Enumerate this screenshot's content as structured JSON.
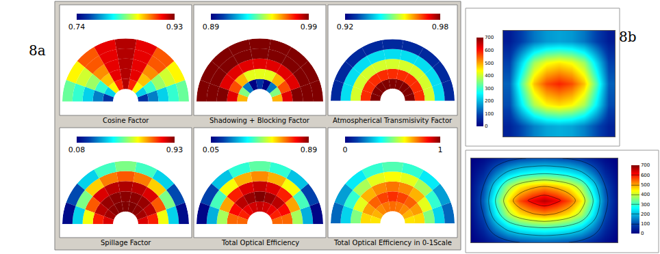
{
  "figure_labels": [
    "8a",
    "8b"
  ],
  "chart_data": [
    {
      "type": "polar_heatmap",
      "title": "Cosine Factor",
      "rlim": [
        0,
        1
      ],
      "r_edges": [
        0.2,
        0.36,
        0.52,
        0.68,
        0.84,
        1.0
      ],
      "theta_edges": [
        0,
        20,
        40,
        60,
        80,
        100,
        120,
        140,
        160,
        180
      ],
      "cells": [
        [
          0.76,
          0.8,
          0.86,
          0.9,
          0.92,
          0.9,
          0.86,
          0.8,
          0.76
        ],
        [
          0.78,
          0.82,
          0.87,
          0.91,
          0.92,
          0.91,
          0.87,
          0.82,
          0.78
        ],
        [
          0.8,
          0.84,
          0.88,
          0.91,
          0.92,
          0.91,
          0.88,
          0.84,
          0.8
        ],
        [
          0.82,
          0.85,
          0.89,
          0.91,
          0.92,
          0.91,
          0.89,
          0.85,
          0.82
        ],
        [
          0.83,
          0.86,
          0.89,
          0.91,
          0.92,
          0.91,
          0.89,
          0.86,
          0.83
        ]
      ],
      "colorbar": {
        "range": [
          0.74,
          0.93
        ],
        "ticks": [
          0.74,
          0.93
        ]
      }
    },
    {
      "type": "polar_heatmap",
      "title": "Shadowing + Blocking Factor",
      "rlim": [
        0,
        1
      ],
      "r_edges": [
        0.2,
        0.36,
        0.52,
        0.68,
        0.84,
        1.0
      ],
      "theta_edges": [
        0,
        20,
        40,
        60,
        80,
        100,
        120,
        140,
        160,
        180
      ],
      "cells": [
        [
          0.96,
          0.94,
          0.91,
          0.89,
          0.9,
          0.89,
          0.91,
          0.94,
          0.96
        ],
        [
          0.98,
          0.97,
          0.96,
          0.95,
          0.95,
          0.95,
          0.96,
          0.97,
          0.98
        ],
        [
          0.99,
          0.98,
          0.98,
          0.98,
          0.98,
          0.98,
          0.98,
          0.98,
          0.99
        ],
        [
          0.99,
          0.99,
          0.99,
          0.99,
          0.99,
          0.99,
          0.99,
          0.99,
          0.99
        ],
        [
          0.99,
          0.99,
          0.99,
          0.99,
          0.99,
          0.99,
          0.99,
          0.99,
          0.99
        ]
      ],
      "colorbar": {
        "range": [
          0.89,
          0.99
        ],
        "ticks": [
          0.89,
          0.99
        ]
      }
    },
    {
      "type": "polar_heatmap",
      "title": "Atmospherical Transmisivity Factor",
      "rlim": [
        0,
        1
      ],
      "r_edges": [
        0.2,
        0.36,
        0.52,
        0.68,
        0.84,
        1.0
      ],
      "theta_edges": [
        0,
        20,
        40,
        60,
        80,
        100,
        120,
        140,
        160,
        180
      ],
      "cells": [
        [
          0.98,
          0.98,
          0.98,
          0.98,
          0.98,
          0.98,
          0.98,
          0.98,
          0.98
        ],
        [
          0.97,
          0.97,
          0.97,
          0.97,
          0.97,
          0.97,
          0.97,
          0.97,
          0.97
        ],
        [
          0.955,
          0.955,
          0.955,
          0.955,
          0.955,
          0.955,
          0.955,
          0.955,
          0.955
        ],
        [
          0.94,
          0.94,
          0.94,
          0.94,
          0.94,
          0.94,
          0.94,
          0.94,
          0.94
        ],
        [
          0.925,
          0.925,
          0.925,
          0.925,
          0.925,
          0.925,
          0.925,
          0.925,
          0.925
        ]
      ],
      "colorbar": {
        "range": [
          0.92,
          0.98
        ],
        "ticks": [
          0.92,
          0.98
        ]
      }
    },
    {
      "type": "polar_heatmap",
      "title": "Spillage Factor",
      "rlim": [
        0,
        1
      ],
      "r_edges": [
        0.2,
        0.36,
        0.52,
        0.68,
        0.84,
        1.0
      ],
      "theta_edges": [
        0,
        20,
        40,
        60,
        80,
        100,
        120,
        140,
        160,
        180
      ],
      "cells": [
        [
          0.85,
          0.9,
          0.92,
          0.93,
          0.93,
          0.93,
          0.92,
          0.9,
          0.85
        ],
        [
          0.8,
          0.88,
          0.91,
          0.92,
          0.92,
          0.92,
          0.91,
          0.88,
          0.8
        ],
        [
          0.6,
          0.75,
          0.85,
          0.88,
          0.89,
          0.88,
          0.85,
          0.75,
          0.6
        ],
        [
          0.35,
          0.5,
          0.65,
          0.72,
          0.75,
          0.72,
          0.65,
          0.5,
          0.35
        ],
        [
          0.1,
          0.2,
          0.35,
          0.45,
          0.5,
          0.45,
          0.35,
          0.2,
          0.1
        ]
      ],
      "colorbar": {
        "range": [
          0.08,
          0.93
        ],
        "ticks": [
          0.08,
          0.93
        ]
      }
    },
    {
      "type": "polar_heatmap",
      "title": "Total Optical Efficiency",
      "rlim": [
        0,
        1
      ],
      "r_edges": [
        0.2,
        0.36,
        0.52,
        0.68,
        0.84,
        1.0
      ],
      "theta_edges": [
        0,
        20,
        40,
        60,
        80,
        100,
        120,
        140,
        160,
        180
      ],
      "cells": [
        [
          0.7,
          0.76,
          0.8,
          0.82,
          0.83,
          0.82,
          0.8,
          0.76,
          0.7
        ],
        [
          0.7,
          0.78,
          0.84,
          0.87,
          0.89,
          0.87,
          0.84,
          0.78,
          0.7
        ],
        [
          0.5,
          0.65,
          0.76,
          0.81,
          0.83,
          0.81,
          0.76,
          0.65,
          0.5
        ],
        [
          0.28,
          0.42,
          0.57,
          0.64,
          0.67,
          0.64,
          0.57,
          0.42,
          0.28
        ],
        [
          0.06,
          0.16,
          0.3,
          0.4,
          0.44,
          0.4,
          0.3,
          0.16,
          0.06
        ]
      ],
      "colorbar": {
        "range": [
          0.05,
          0.89
        ],
        "ticks": [
          0.05,
          0.89
        ]
      }
    },
    {
      "type": "polar_heatmap",
      "title": "Total Optical Efficiency in 0-1Scale",
      "rlim": [
        0,
        1
      ],
      "r_edges": [
        0.2,
        0.36,
        0.52,
        0.68,
        0.84,
        1.0
      ],
      "theta_edges": [
        0,
        20,
        40,
        60,
        80,
        100,
        120,
        140,
        160,
        180
      ],
      "cells": [
        [
          0.65,
          0.7,
          0.74,
          0.76,
          0.77,
          0.76,
          0.74,
          0.7,
          0.65
        ],
        [
          0.66,
          0.72,
          0.78,
          0.81,
          0.83,
          0.81,
          0.78,
          0.72,
          0.66
        ],
        [
          0.5,
          0.6,
          0.7,
          0.74,
          0.76,
          0.74,
          0.7,
          0.6,
          0.5
        ],
        [
          0.32,
          0.42,
          0.54,
          0.6,
          0.62,
          0.6,
          0.54,
          0.42,
          0.32
        ],
        [
          0.18,
          0.25,
          0.35,
          0.42,
          0.45,
          0.42,
          0.35,
          0.25,
          0.18
        ]
      ],
      "colorbar": {
        "range": [
          0,
          1
        ],
        "ticks": [
          0,
          1
        ]
      }
    },
    {
      "type": "heatmap",
      "tick_labels": false,
      "cells": [
        [
          50,
          100,
          150,
          180,
          190,
          180,
          150,
          100,
          50
        ],
        [
          100,
          250,
          380,
          440,
          460,
          440,
          380,
          250,
          100
        ],
        [
          120,
          320,
          480,
          560,
          590,
          560,
          480,
          320,
          120
        ],
        [
          90,
          230,
          370,
          430,
          450,
          430,
          370,
          230,
          90
        ],
        [
          40,
          90,
          140,
          170,
          180,
          170,
          140,
          90,
          40
        ]
      ],
      "colorbar": {
        "range": [
          0,
          700
        ],
        "ticks": [
          0,
          100,
          200,
          300,
          400,
          500,
          600,
          700
        ]
      }
    },
    {
      "type": "contour",
      "tick_labels": false,
      "cells": [
        [
          0,
          20,
          50,
          80,
          100,
          110,
          115,
          110,
          100,
          80,
          50,
          20,
          0
        ],
        [
          10,
          60,
          150,
          220,
          260,
          280,
          290,
          280,
          260,
          220,
          150,
          60,
          10
        ],
        [
          20,
          100,
          250,
          380,
          450,
          490,
          510,
          490,
          450,
          380,
          250,
          100,
          20
        ],
        [
          25,
          120,
          300,
          450,
          560,
          620,
          660,
          620,
          560,
          450,
          300,
          120,
          25
        ],
        [
          20,
          100,
          240,
          370,
          440,
          480,
          500,
          480,
          440,
          370,
          240,
          100,
          20
        ],
        [
          10,
          55,
          140,
          210,
          250,
          270,
          280,
          270,
          250,
          210,
          140,
          55,
          10
        ],
        [
          0,
          15,
          45,
          75,
          95,
          105,
          110,
          105,
          95,
          75,
          45,
          15,
          0
        ]
      ],
      "colorbar": {
        "range": [
          0,
          700
        ],
        "ticks": [
          0,
          100,
          200,
          300,
          400,
          500,
          600,
          700
        ]
      }
    }
  ]
}
